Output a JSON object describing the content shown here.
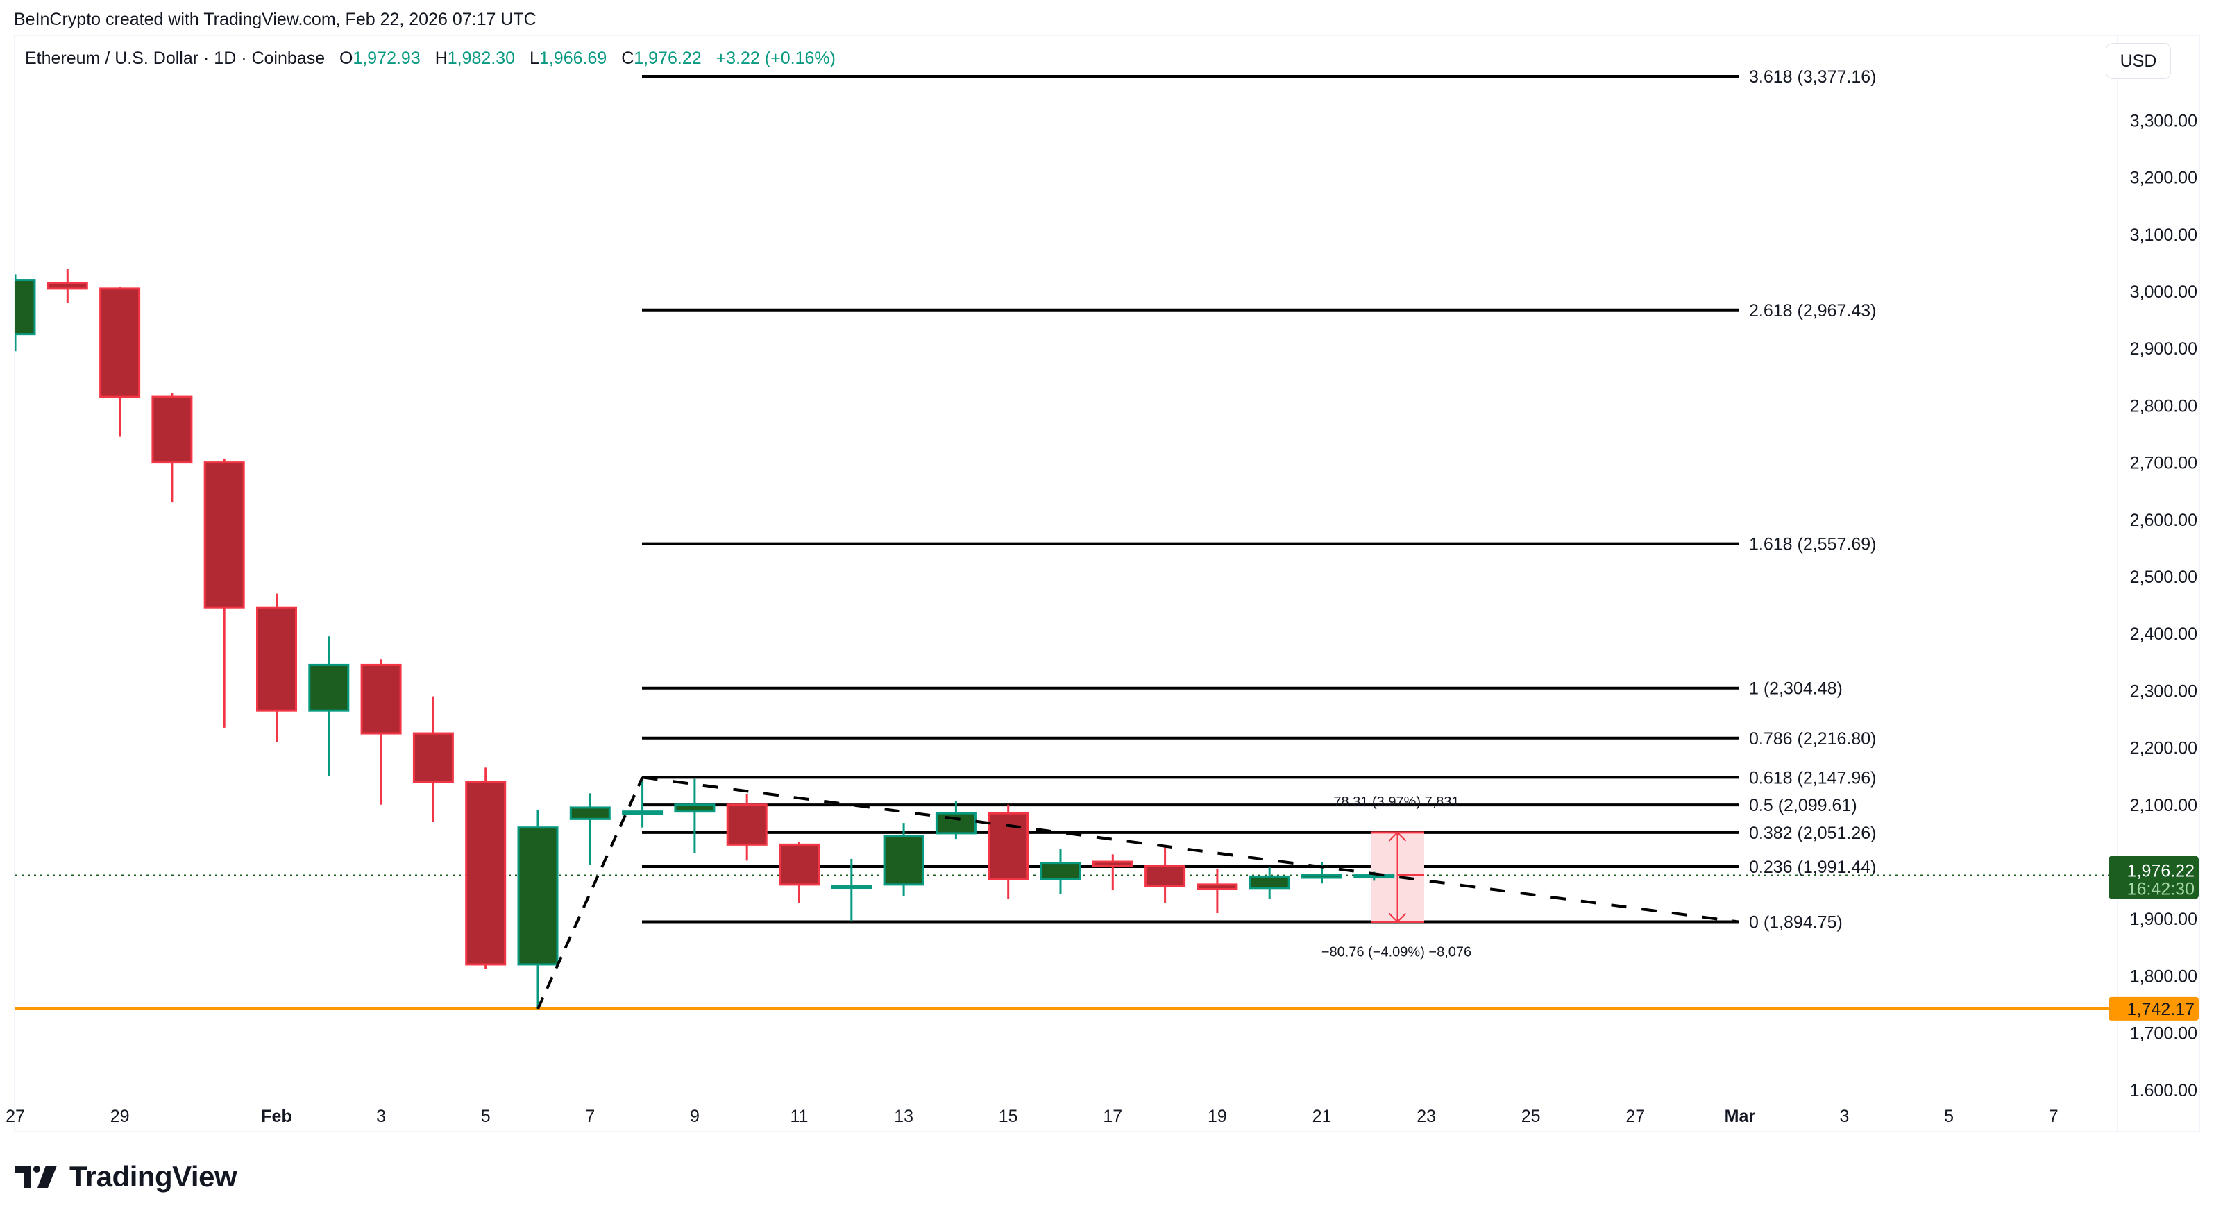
{
  "credit": "BeInCrypto created with TradingView.com, Feb 22, 2026 07:17 UTC",
  "legend": {
    "symbol": "Ethereum / U.S. Dollar · 1D · Coinbase",
    "o_label": "O",
    "o": "1,972.93",
    "h_label": "H",
    "h": "1,982.30",
    "l_label": "L",
    "l": "1,966.69",
    "c_label": "C",
    "c": "1,976.22",
    "change": "+3.22 (+0.16%)"
  },
  "currency_button": "USD",
  "price_axis": {
    "ticks": [
      "3,300.00",
      "3,200.00",
      "3,100.00",
      "3,000.00",
      "2,900.00",
      "2,800.00",
      "2,700.00",
      "2,600.00",
      "2,500.00",
      "2,400.00",
      "2,300.00",
      "2,200.00",
      "2,100.00",
      "2,000.00",
      "1,900.00",
      "1,800.00",
      "1,700.00",
      "1.600.00"
    ],
    "last_price_label": "1,976.22",
    "countdown_label": "16:42:30",
    "support_label": "1,742.17"
  },
  "time_axis": {
    "ticks": [
      {
        "label": "27",
        "day": 0,
        "bold": false
      },
      {
        "label": "29",
        "day": 2,
        "bold": false
      },
      {
        "label": "Feb",
        "day": 5,
        "bold": true
      },
      {
        "label": "3",
        "day": 7,
        "bold": false
      },
      {
        "label": "5",
        "day": 9,
        "bold": false
      },
      {
        "label": "7",
        "day": 11,
        "bold": false
      },
      {
        "label": "9",
        "day": 13,
        "bold": false
      },
      {
        "label": "11",
        "day": 15,
        "bold": false
      },
      {
        "label": "13",
        "day": 17,
        "bold": false
      },
      {
        "label": "15",
        "day": 19,
        "bold": false
      },
      {
        "label": "17",
        "day": 21,
        "bold": false
      },
      {
        "label": "19",
        "day": 23,
        "bold": false
      },
      {
        "label": "21",
        "day": 25,
        "bold": false
      },
      {
        "label": "23",
        "day": 27,
        "bold": false
      },
      {
        "label": "25",
        "day": 29,
        "bold": false
      },
      {
        "label": "27",
        "day": 31,
        "bold": false
      },
      {
        "label": "Mar",
        "day": 33,
        "bold": true
      },
      {
        "label": "3",
        "day": 35,
        "bold": false
      },
      {
        "label": "5",
        "day": 37,
        "bold": false
      },
      {
        "label": "7",
        "day": 39,
        "bold": false
      }
    ]
  },
  "fib_levels": [
    {
      "label": "3.618 (3,377.16)",
      "price": 3377.16
    },
    {
      "label": "2.618 (2,967.43)",
      "price": 2967.43
    },
    {
      "label": "1.618 (2,557.69)",
      "price": 2557.69
    },
    {
      "label": "1 (2,304.48)",
      "price": 2304.48
    },
    {
      "label": "0.786 (2,216.80)",
      "price": 2216.8
    },
    {
      "label": "0.618 (2,147.96)",
      "price": 2147.96
    },
    {
      "label": "0.5 (2,099.61)",
      "price": 2099.61
    },
    {
      "label": "0.382 (2,051.26)",
      "price": 2051.26
    },
    {
      "label": "0.236 (1,991.44)",
      "price": 1991.44
    },
    {
      "label": "0 (1,894.75)",
      "price": 1894.75
    }
  ],
  "measure": {
    "up_label": "78.31 (3.97%) 7,831",
    "down_label": "−80.76 (−4.09%) −8,076"
  },
  "colors": {
    "up_body": "#1b5e20",
    "up_border": "#089981",
    "down_body": "#b22833",
    "down_border": "#f23645",
    "support": "#ff9800",
    "last_price": "#1b5e20",
    "fib_line": "#000000",
    "measure_fill": "#fcdde0",
    "measure_line": "#f23645"
  },
  "logo_text": "TradingView",
  "chart_data": {
    "type": "candlestick",
    "title": "Ethereum / U.S. Dollar · 1D · Coinbase",
    "xlabel": "",
    "ylabel": "USD",
    "ylim": [
      1580,
      3420
    ],
    "x": [
      "Jan 27",
      "Jan 28",
      "Jan 29",
      "Jan 30",
      "Jan 31",
      "Feb 1",
      "Feb 2",
      "Feb 3",
      "Feb 4",
      "Feb 5",
      "Feb 6",
      "Feb 7",
      "Feb 8",
      "Feb 9",
      "Feb 10",
      "Feb 11",
      "Feb 12",
      "Feb 13",
      "Feb 14",
      "Feb 15",
      "Feb 16",
      "Feb 17",
      "Feb 18",
      "Feb 19",
      "Feb 20",
      "Feb 21",
      "Feb 22"
    ],
    "ohlc": [
      [
        2925,
        3030,
        2895,
        3020
      ],
      [
        3015,
        3040,
        2980,
        3005
      ],
      [
        3005,
        3008,
        2745,
        2815
      ],
      [
        2815,
        2822,
        2630,
        2700
      ],
      [
        2700,
        2707,
        2235,
        2445
      ],
      [
        2445,
        2470,
        2210,
        2265
      ],
      [
        2265,
        2395,
        2150,
        2345
      ],
      [
        2345,
        2355,
        2100,
        2225
      ],
      [
        2225,
        2290,
        2070,
        2140
      ],
      [
        2140,
        2165,
        1812,
        1820
      ],
      [
        1820,
        2090,
        1742,
        2060
      ],
      [
        2075,
        2120,
        1995,
        2095
      ],
      [
        2087,
        2148,
        2060,
        2088
      ],
      [
        2088,
        2145,
        2015,
        2100
      ],
      [
        2100,
        2118,
        2002,
        2030
      ],
      [
        2030,
        2035,
        1928,
        1960
      ],
      [
        1955,
        2005,
        1895,
        1958
      ],
      [
        1960,
        2068,
        1940,
        2045
      ],
      [
        2050,
        2107,
        2040,
        2085
      ],
      [
        2085,
        2100,
        1935,
        1970
      ],
      [
        1970,
        2022,
        1943,
        1998
      ],
      [
        2000,
        2013,
        1950,
        1993
      ],
      [
        1993,
        2028,
        1928,
        1958
      ],
      [
        1960,
        1988,
        1910,
        1952
      ],
      [
        1954,
        1990,
        1935,
        1974
      ],
      [
        1972,
        1999,
        1962,
        1977
      ],
      [
        1972.93,
        1982.3,
        1966.69,
        1976.22
      ]
    ],
    "horizontal_lines": [
      {
        "price": 1742.17,
        "color": "#ff9800",
        "label": "support"
      }
    ],
    "fibonacci_extension": {
      "anchor_low": 1742.17,
      "anchor_high": 2147.96,
      "levels": [
        0,
        0.236,
        0.382,
        0.5,
        0.618,
        0.786,
        1,
        1.618,
        2.618,
        3.618
      ]
    },
    "trendline": {
      "from": [
        "Feb 8",
        2148
      ],
      "to": [
        "Mar 1",
        1895
      ],
      "style": "dashed"
    },
    "last_price": 1976.22
  }
}
